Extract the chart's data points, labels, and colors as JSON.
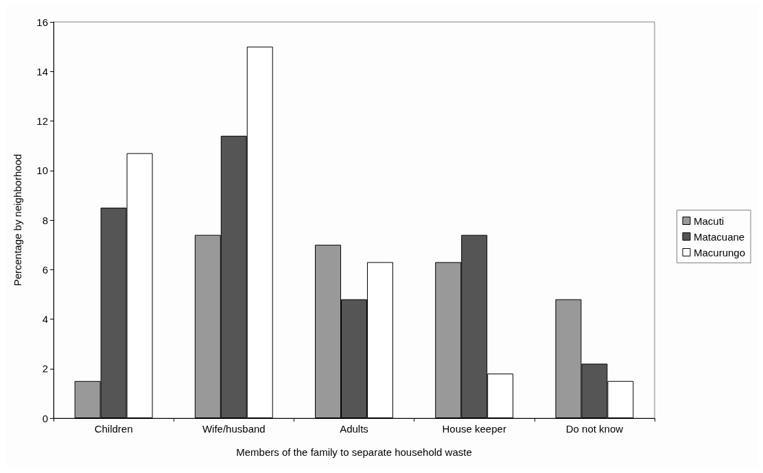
{
  "chart_data": {
    "type": "bar",
    "xlabel": "Members of the family to separate household waste",
    "ylabel": "Percentage by neighborhood",
    "categories": [
      "Children",
      "Wife/husband",
      "Adults",
      "House keeper",
      "Do not know"
    ],
    "series": [
      {
        "name": "Macuti",
        "color": "#999999",
        "values": [
          1.5,
          7.4,
          7.0,
          6.3,
          4.8
        ]
      },
      {
        "name": "Matacuane",
        "color": "#555555",
        "values": [
          8.5,
          11.4,
          4.8,
          7.4,
          2.2
        ]
      },
      {
        "name": "Macurungo",
        "color": "#ffffff",
        "values": [
          10.7,
          15.0,
          6.3,
          1.8,
          1.5
        ]
      }
    ],
    "ylim": [
      0,
      16
    ],
    "yticks": [
      0,
      2,
      4,
      6,
      8,
      10,
      12,
      14,
      16
    ],
    "grid": false,
    "legend": "right"
  }
}
